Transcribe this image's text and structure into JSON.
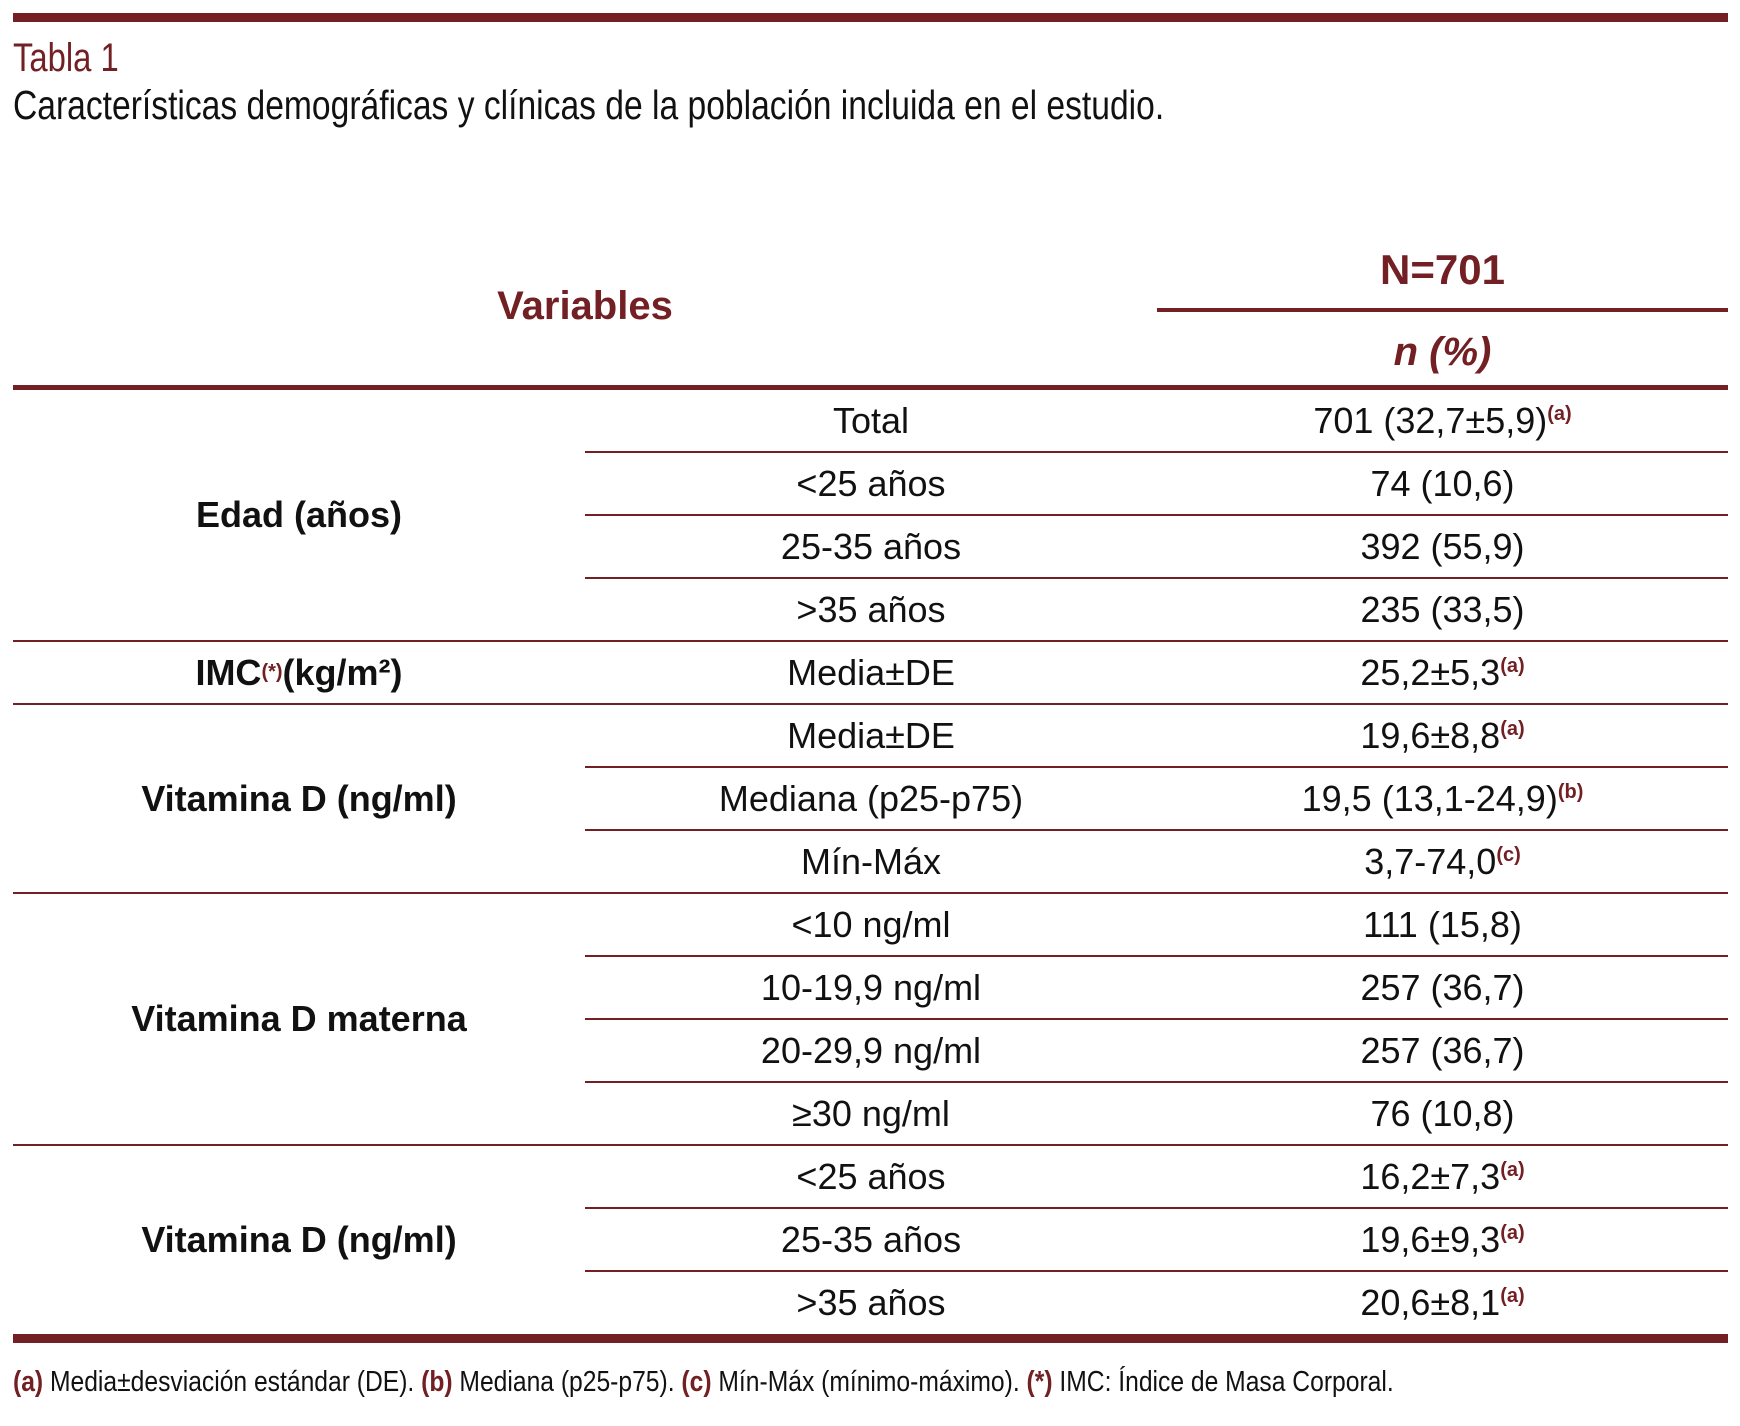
{
  "title": "Tabla 1",
  "subtitle": "Características demográficas y clínicas de la población incluida en el estudio.",
  "header": {
    "variables": "Variables",
    "n_total": "N=701",
    "n_pct": "n (%)"
  },
  "groups": [
    {
      "label": "Edad (años)",
      "label_sup": "",
      "label_suffix": "",
      "rows": [
        {
          "sub": "Total",
          "value": "701 (32,7±5,9)",
          "note": "(a)"
        },
        {
          "sub": "<25 años",
          "value": "74 (10,6)",
          "note": ""
        },
        {
          "sub": "25-35 años",
          "value": "392 (55,9)",
          "note": ""
        },
        {
          "sub": ">35 años",
          "value": "235 (33,5)",
          "note": ""
        }
      ]
    },
    {
      "label": "IMC",
      "label_sup": "(*)",
      "label_suffix": " (kg/m²)",
      "rows": [
        {
          "sub": "Media±DE",
          "value": "25,2±5,3",
          "note": "(a)"
        }
      ]
    },
    {
      "label": "Vitamina D (ng/ml)",
      "label_sup": "",
      "label_suffix": "",
      "rows": [
        {
          "sub": "Media±DE",
          "value": "19,6±8,8",
          "note": "(a)"
        },
        {
          "sub": "Mediana (p25-p75)",
          "value": "19,5 (13,1-24,9)",
          "note": "(b)"
        },
        {
          "sub": "Mín-Máx",
          "value": "3,7-74,0",
          "note": "(c)"
        }
      ]
    },
    {
      "label": "Vitamina D materna",
      "label_sup": "",
      "label_suffix": "",
      "rows": [
        {
          "sub": "<10 ng/ml",
          "value": "111 (15,8)",
          "note": ""
        },
        {
          "sub": "10-19,9 ng/ml",
          "value": "257 (36,7)",
          "note": ""
        },
        {
          "sub": "20-29,9 ng/ml",
          "value": "257 (36,7)",
          "note": ""
        },
        {
          "sub": "≥30 ng/ml",
          "value": "76 (10,8)",
          "note": ""
        }
      ]
    },
    {
      "label": "Vitamina D (ng/ml)",
      "label_sup": "",
      "label_suffix": "",
      "rows": [
        {
          "sub": "<25 años",
          "value": "16,2±7,3",
          "note": "(a)"
        },
        {
          "sub": "25-35 años",
          "value": "19,6±9,3",
          "note": "(a)"
        },
        {
          "sub": ">35 años",
          "value": "20,6±8,1",
          "note": "(a)"
        }
      ]
    }
  ],
  "footnotes": [
    {
      "mark": "(a)",
      "text": " Media±desviación estándar (DE). "
    },
    {
      "mark": "(b)",
      "text": " Mediana (p25-p75). "
    },
    {
      "mark": "(c)",
      "text": " Mín-Máx (mínimo-máximo). "
    },
    {
      "mark": "(*)",
      "text": " IMC: Índice de Masa Corporal."
    }
  ],
  "colors": {
    "accent": "#722023"
  }
}
